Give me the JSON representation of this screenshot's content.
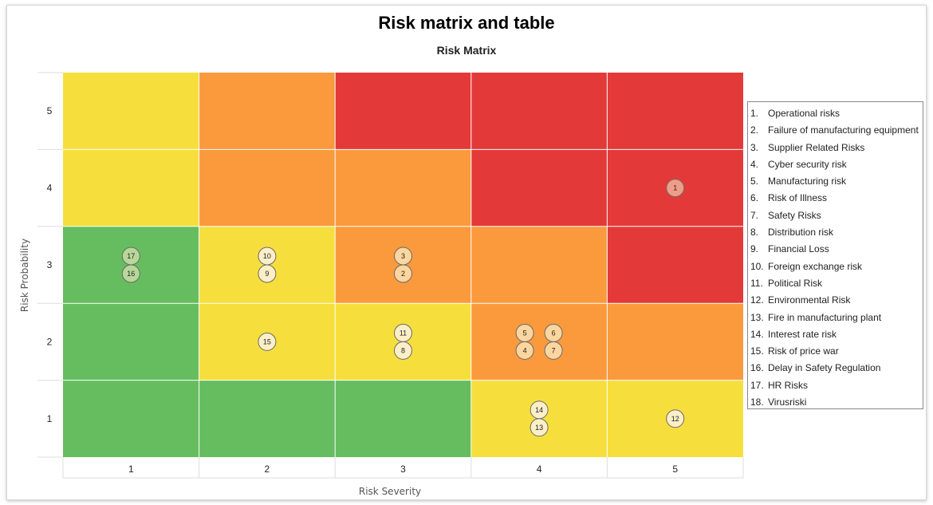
{
  "title": "Risk matrix and table",
  "subtitle": "Risk Matrix",
  "chart_data": {
    "type": "heatmap",
    "title": "Risk Matrix",
    "xlabel": "Risk Severity",
    "ylabel": "Risk Probability",
    "x_categories": [
      "1",
      "2",
      "3",
      "4",
      "5"
    ],
    "y_categories": [
      "1",
      "2",
      "3",
      "4",
      "5"
    ],
    "grid": true,
    "legend_position": "right",
    "colors": {
      "green": "#66bd5f",
      "yellow": "#f6df3d",
      "orange": "#fa9a3d",
      "red": "#e33a39",
      "marker_fill": "#fcefc8",
      "marker_stroke": "#6a6a6a"
    },
    "cell_levels": [
      [
        "green",
        "green",
        "green",
        "yellow",
        "yellow"
      ],
      [
        "green",
        "yellow",
        "yellow",
        "orange",
        "orange"
      ],
      [
        "green",
        "yellow",
        "orange",
        "orange",
        "red"
      ],
      [
        "yellow",
        "orange",
        "orange",
        "red",
        "red"
      ],
      [
        "yellow",
        "orange",
        "red",
        "red",
        "red"
      ]
    ],
    "risks": [
      {
        "id": 1,
        "name": "Operational risks",
        "severity": 5,
        "probability": 4
      },
      {
        "id": 2,
        "name": "Failure of manufacturing equipment",
        "severity": 3,
        "probability": 3
      },
      {
        "id": 3,
        "name": "Supplier Related Risks",
        "severity": 3,
        "probability": 3
      },
      {
        "id": 4,
        "name": "Cyber security risk",
        "severity": 4,
        "probability": 2
      },
      {
        "id": 5,
        "name": "Manufacturing risk",
        "severity": 4,
        "probability": 2
      },
      {
        "id": 6,
        "name": "Risk of Illness",
        "severity": 4,
        "probability": 2
      },
      {
        "id": 7,
        "name": "Safety Risks",
        "severity": 4,
        "probability": 2
      },
      {
        "id": 8,
        "name": "Distribution risk",
        "severity": 3,
        "probability": 2
      },
      {
        "id": 9,
        "name": "Financial Loss",
        "severity": 2,
        "probability": 3
      },
      {
        "id": 10,
        "name": "Foreign exchange risk",
        "severity": 2,
        "probability": 3
      },
      {
        "id": 11,
        "name": "Political Risk",
        "severity": 3,
        "probability": 2
      },
      {
        "id": 12,
        "name": "Environmental Risk",
        "severity": 5,
        "probability": 1
      },
      {
        "id": 13,
        "name": "Fire in manufacturing plant",
        "severity": 4,
        "probability": 1
      },
      {
        "id": 14,
        "name": "Interest rate risk",
        "severity": 4,
        "probability": 1
      },
      {
        "id": 15,
        "name": "Risk of price war",
        "severity": 2,
        "probability": 2
      },
      {
        "id": 16,
        "name": "Delay in Safety Regulation",
        "severity": 1,
        "probability": 3
      },
      {
        "id": 17,
        "name": "HR Risks",
        "severity": 1,
        "probability": 3
      },
      {
        "id": 18,
        "name": "Virusriski",
        "severity": null,
        "probability": null
      }
    ],
    "markers": [
      {
        "label": "1",
        "severity": 5,
        "probability": 4,
        "opacity": 0.55
      },
      {
        "label": "17",
        "severity": 1,
        "probability": 3,
        "opacity": 0.55
      },
      {
        "label": "16",
        "severity": 1,
        "probability": 3,
        "opacity": 0.55
      },
      {
        "label": "10",
        "severity": 2,
        "probability": 3,
        "opacity": 1
      },
      {
        "label": "9",
        "severity": 2,
        "probability": 3,
        "opacity": 1
      },
      {
        "label": "3",
        "severity": 3,
        "probability": 3,
        "opacity": 0.7
      },
      {
        "label": "2",
        "severity": 3,
        "probability": 3,
        "opacity": 0.7
      },
      {
        "label": "15",
        "severity": 2,
        "probability": 2,
        "opacity": 1
      },
      {
        "label": "11",
        "severity": 3,
        "probability": 2,
        "opacity": 1
      },
      {
        "label": "8",
        "severity": 3,
        "probability": 2,
        "opacity": 1
      },
      {
        "label": "5",
        "severity": 4,
        "probability": 2,
        "opacity": 0.7
      },
      {
        "label": "4",
        "severity": 4,
        "probability": 2,
        "opacity": 0.7
      },
      {
        "label": "6",
        "severity": 4,
        "probability": 2,
        "opacity": 0.7
      },
      {
        "label": "7",
        "severity": 4,
        "probability": 2,
        "opacity": 0.7
      },
      {
        "label": "14",
        "severity": 4,
        "probability": 1,
        "opacity": 1
      },
      {
        "label": "13",
        "severity": 4,
        "probability": 1,
        "opacity": 1
      },
      {
        "label": "12",
        "severity": 5,
        "probability": 1,
        "opacity": 1
      }
    ]
  }
}
